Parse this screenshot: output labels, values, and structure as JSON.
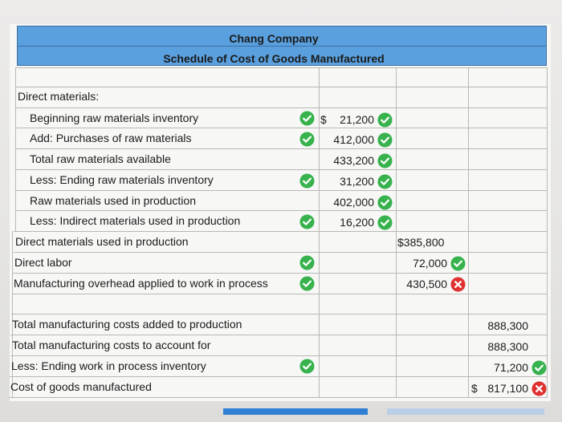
{
  "header": {
    "company": "Chang Company",
    "title": "Schedule of Cost of Goods Manufactured"
  },
  "rows": {
    "direct_materials": "Direct materials:",
    "beginning_raw": "Beginning raw materials inventory",
    "purchases": "Add: Purchases of raw materials",
    "total_available": "Total raw materials available",
    "ending_raw": "Less: Ending raw materials inventory",
    "raw_used": "Raw materials used in production",
    "indirect_used": "Less: Indirect materials used in production",
    "dm_used": "Direct materials used in production",
    "direct_labor": "Direct labor",
    "moh_applied": "Manufacturing overhead applied to work in process",
    "total_added": "Total manufacturing costs added to production",
    "total_account": "Total manufacturing costs to account for",
    "ending_wip": "Less: Ending work in process inventory",
    "cogm": "Cost of goods manufactured"
  },
  "values": {
    "dollar_sign": "$",
    "beginning_raw": "21,200",
    "purchases": "412,000",
    "total_available": "433,200",
    "ending_raw": "31,200",
    "raw_used": "402,000",
    "indirect_used": "16,200",
    "dm_used": "$385,800",
    "direct_labor": "72,000",
    "moh_applied": "430,500",
    "total_added": "888,300",
    "total_account": "888,300",
    "ending_wip": "71,200",
    "cogm_sign": "$",
    "cogm": "817,100"
  },
  "colors": {
    "header_blue": "#5aa0de",
    "correct_green": "#37b24d",
    "incorrect_red": "#e03131",
    "progress_blue": "#2f7fd4"
  }
}
